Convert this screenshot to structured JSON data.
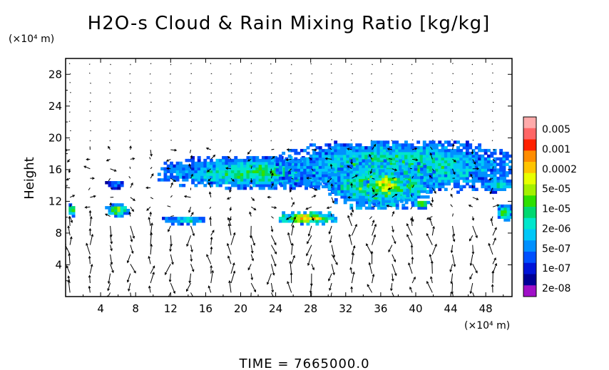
{
  "chart_data": {
    "type": "heatmap",
    "title": "H2O-s Cloud & Rain Mixing Ratio [kg/kg]",
    "ylabel": "Height",
    "x_unit": "(×10⁴ m)",
    "y_unit": "(×10⁴ m)",
    "xlim": [
      0,
      51
    ],
    "ylim": [
      0,
      30
    ],
    "x_ticks": [
      "4",
      "8",
      "12",
      "16",
      "20",
      "24",
      "28",
      "32",
      "36",
      "40",
      "44",
      "48"
    ],
    "y_ticks": [
      "4",
      "8",
      "12",
      "16",
      "20",
      "24",
      "28"
    ],
    "colorbar": {
      "labels": [
        "0.005",
        "0.001",
        "0.0002",
        "5e-05",
        "1e-05",
        "2e-06",
        "5e-07",
        "1e-07",
        "2e-08"
      ],
      "colors": [
        "#ffaaaa",
        "#ff6666",
        "#ff2000",
        "#ff8c00",
        "#ffc400",
        "#e8ff00",
        "#a4f000",
        "#2ee000",
        "#00d870",
        "#00e6cc",
        "#00c8f8",
        "#0090ff",
        "#0050ff",
        "#0014d8",
        "#000096",
        "#a010c8"
      ]
    },
    "footer": "TIME = 7665000.0",
    "cloud_regions": [
      {
        "x": [
          10.5,
          34
        ],
        "y": [
          13.5,
          17.5
        ],
        "level": 7
      },
      {
        "x": [
          24,
          51
        ],
        "y": [
          13,
          19.5
        ],
        "level": 7
      },
      {
        "x": [
          30,
          42
        ],
        "y": [
          11,
          17
        ],
        "level": 9
      },
      {
        "x": [
          34,
          39
        ],
        "y": [
          11.5,
          16
        ],
        "level": 10
      },
      {
        "x": [
          4.5,
          6.5
        ],
        "y": [
          13.5,
          14.5
        ],
        "level": 3
      },
      {
        "x": [
          4.5,
          7
        ],
        "y": [
          10,
          11.5
        ],
        "level": 9
      },
      {
        "x": [
          24,
          31
        ],
        "y": [
          9,
          10.5
        ],
        "level": 11
      },
      {
        "x": [
          11,
          16
        ],
        "y": [
          9,
          10
        ],
        "level": 6
      },
      {
        "x": [
          49,
          51
        ],
        "y": [
          9.5,
          11.5
        ],
        "level": 8
      },
      {
        "x": [
          0,
          1
        ],
        "y": [
          10,
          11.5
        ],
        "level": 8
      },
      {
        "x": [
          39.5,
          41.5
        ],
        "y": [
          11,
          12
        ],
        "level": 9
      },
      {
        "x": [
          47.5,
          51
        ],
        "y": [
          13,
          15
        ],
        "level": 6
      }
    ]
  }
}
